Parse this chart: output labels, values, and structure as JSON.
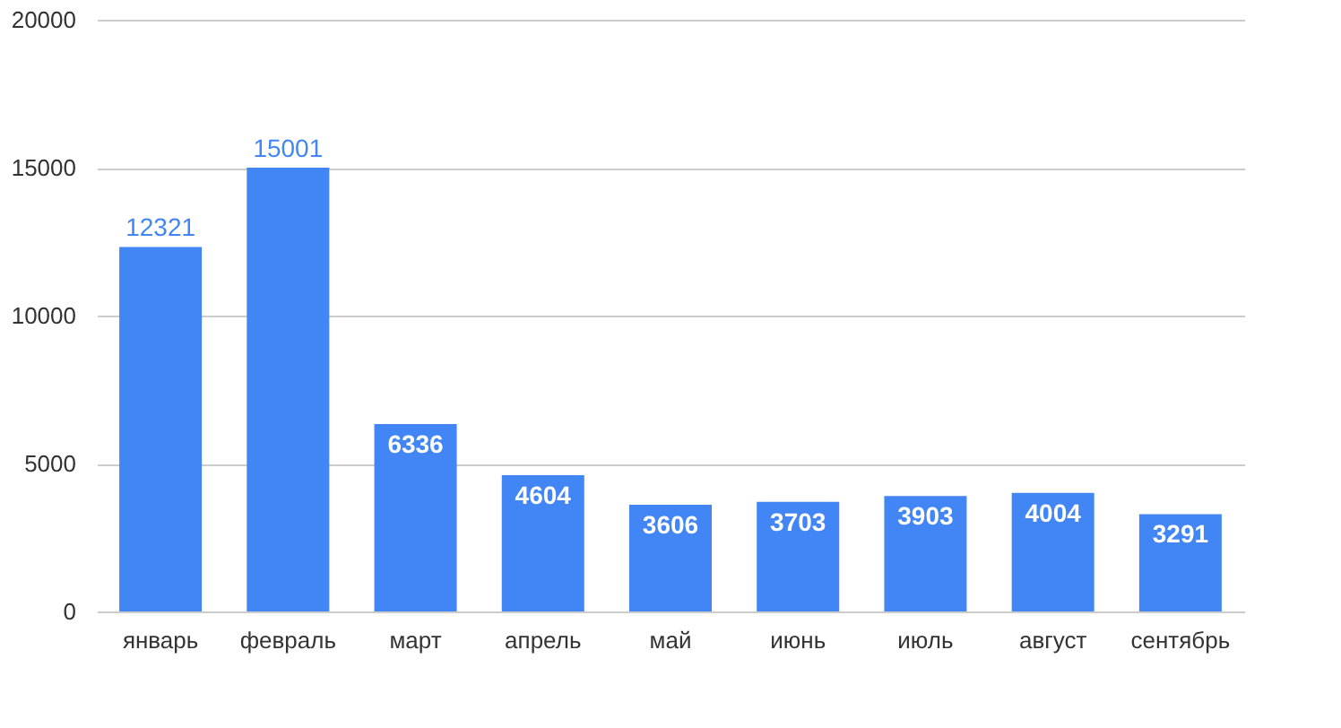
{
  "chart_data": {
    "type": "bar",
    "categories": [
      "январь",
      "февраль",
      "март",
      "апрель",
      "май",
      "июнь",
      "июль",
      "август",
      "сентябрь"
    ],
    "values": [
      12321,
      15001,
      6336,
      4604,
      3606,
      3703,
      3903,
      4004,
      3291
    ],
    "color": "#4285f4",
    "ylim": [
      0,
      20000
    ],
    "yticks": [
      0,
      5000,
      10000,
      15000,
      20000
    ],
    "grid": "y",
    "data_labels": true
  }
}
